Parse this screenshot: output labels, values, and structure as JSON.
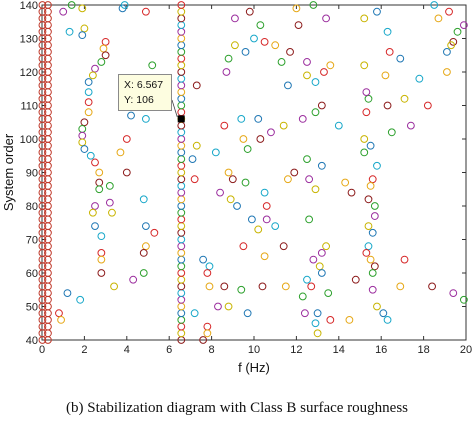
{
  "chart_data": {
    "type": "scatter",
    "xlabel": "f (Hz)",
    "ylabel": "System order",
    "xlim": [
      0,
      20
    ],
    "ylim": [
      40,
      140
    ],
    "xticks": [
      0,
      2,
      4,
      6,
      8,
      10,
      12,
      14,
      16,
      18,
      20
    ],
    "yticks": [
      40,
      50,
      60,
      70,
      80,
      90,
      100,
      110,
      120,
      130,
      140
    ],
    "grid": false,
    "marker": "open-circle",
    "stable_columns": [
      {
        "x": 0.02,
        "color": "#c0392b"
      },
      {
        "x": 0.28,
        "color": "#c0392b"
      },
      {
        "x": 6.57,
        "color": "mixed"
      }
    ],
    "column_order_range": [
      40,
      140
    ],
    "column_order_step": 2,
    "palette": [
      "#d62728",
      "#2ca02c",
      "#1f77b4",
      "#e6a817",
      "#9b2e9e",
      "#17a7c9",
      "#8c1b1b",
      "#c8b400"
    ],
    "scatter_points": [
      [
        1.4,
        140
      ],
      [
        1.0,
        138
      ],
      [
        1.9,
        139
      ],
      [
        3.8,
        139
      ],
      [
        3.9,
        140
      ],
      [
        4.9,
        138
      ],
      [
        12.0,
        139
      ],
      [
        12.1,
        134
      ],
      [
        12.8,
        140
      ],
      [
        13.4,
        136
      ],
      [
        15.2,
        136
      ],
      [
        15.8,
        138
      ],
      [
        18.5,
        140
      ],
      [
        19.2,
        138
      ],
      [
        18.7,
        136
      ],
      [
        9.8,
        138
      ],
      [
        10.3,
        134
      ],
      [
        9.1,
        136
      ],
      [
        2.0,
        133
      ],
      [
        1.9,
        131
      ],
      [
        1.3,
        132
      ],
      [
        3.0,
        129
      ],
      [
        2.9,
        127
      ],
      [
        3.0,
        125
      ],
      [
        2.8,
        123
      ],
      [
        2.5,
        121
      ],
      [
        2.4,
        119
      ],
      [
        2.2,
        117
      ],
      [
        2.2,
        114
      ],
      [
        2.2,
        111
      ],
      [
        2.2,
        108
      ],
      [
        2.0,
        105
      ],
      [
        1.9,
        103
      ],
      [
        1.9,
        101
      ],
      [
        1.9,
        99
      ],
      [
        2.0,
        97
      ],
      [
        2.3,
        95
      ],
      [
        2.5,
        93
      ],
      [
        2.7,
        90
      ],
      [
        2.7,
        87
      ],
      [
        2.7,
        85
      ],
      [
        2.5,
        80
      ],
      [
        2.4,
        78
      ],
      [
        2.5,
        74
      ],
      [
        2.8,
        71
      ],
      [
        2.8,
        66
      ],
      [
        2.8,
        64
      ],
      [
        2.8,
        60
      ],
      [
        5.2,
        122
      ],
      [
        4.2,
        117
      ],
      [
        4.3,
        113
      ],
      [
        4.2,
        107
      ],
      [
        4.9,
        106
      ],
      [
        4.0,
        100
      ],
      [
        3.7,
        96
      ],
      [
        4.0,
        90
      ],
      [
        3.2,
        86
      ],
      [
        3.2,
        81
      ],
      [
        3.3,
        78
      ],
      [
        4.9,
        74
      ],
      [
        4.8,
        82
      ],
      [
        5.3,
        72
      ],
      [
        4.9,
        68
      ],
      [
        4.8,
        66
      ],
      [
        4.8,
        60
      ],
      [
        4.3,
        58
      ],
      [
        3.4,
        56
      ],
      [
        1.2,
        54
      ],
      [
        1.8,
        52
      ],
      [
        0.8,
        48
      ],
      [
        0.9,
        46
      ],
      [
        7.3,
        116
      ],
      [
        8.8,
        124
      ],
      [
        8.7,
        120
      ],
      [
        9.1,
        128
      ],
      [
        9.6,
        126
      ],
      [
        10.0,
        130
      ],
      [
        10.5,
        129
      ],
      [
        11.0,
        128
      ],
      [
        11.7,
        126
      ],
      [
        11.3,
        123
      ],
      [
        12.5,
        123
      ],
      [
        12.5,
        119
      ],
      [
        11.6,
        116
      ],
      [
        12.9,
        117
      ],
      [
        13.3,
        120
      ],
      [
        13.6,
        122
      ],
      [
        13.2,
        110
      ],
      [
        12.9,
        108
      ],
      [
        12.3,
        106
      ],
      [
        11.4,
        104
      ],
      [
        10.2,
        106
      ],
      [
        9.4,
        106
      ],
      [
        8.6,
        104
      ],
      [
        9.5,
        100
      ],
      [
        10.3,
        100
      ],
      [
        9.7,
        97
      ],
      [
        10.8,
        102
      ],
      [
        7.3,
        98
      ],
      [
        7.1,
        94
      ],
      [
        8.2,
        96
      ],
      [
        7.2,
        88
      ],
      [
        8.8,
        90
      ],
      [
        9.0,
        88
      ],
      [
        9.6,
        87
      ],
      [
        8.4,
        84
      ],
      [
        8.9,
        82
      ],
      [
        9.2,
        80
      ],
      [
        10.5,
        84
      ],
      [
        10.6,
        80
      ],
      [
        11.6,
        88
      ],
      [
        11.9,
        90
      ],
      [
        12.5,
        94
      ],
      [
        12.6,
        88
      ],
      [
        12.9,
        85
      ],
      [
        13.2,
        92
      ],
      [
        14.0,
        104
      ],
      [
        15.3,
        108
      ],
      [
        14.3,
        87
      ],
      [
        14.6,
        84
      ],
      [
        15.2,
        96
      ],
      [
        10.6,
        76
      ],
      [
        10.2,
        73
      ],
      [
        9.9,
        76
      ],
      [
        11.0,
        74
      ],
      [
        9.5,
        68
      ],
      [
        10.5,
        65
      ],
      [
        11.4,
        68
      ],
      [
        12.6,
        76
      ],
      [
        12.8,
        64
      ],
      [
        13.1,
        62
      ],
      [
        13.2,
        60
      ],
      [
        12.5,
        58
      ],
      [
        12.7,
        56
      ],
      [
        11.5,
        56
      ],
      [
        10.4,
        56
      ],
      [
        12.3,
        53
      ],
      [
        12.4,
        48
      ],
      [
        13.0,
        42
      ],
      [
        13.0,
        48
      ],
      [
        12.9,
        45
      ],
      [
        13.6,
        46
      ],
      [
        14.5,
        46
      ],
      [
        14.8,
        58
      ],
      [
        13.5,
        54
      ],
      [
        13.2,
        66
      ],
      [
        13.4,
        68
      ],
      [
        7.6,
        64
      ],
      [
        7.9,
        62
      ],
      [
        7.8,
        60
      ],
      [
        7.9,
        56
      ],
      [
        8.6,
        56
      ],
      [
        9.4,
        55
      ],
      [
        8.3,
        50
      ],
      [
        8.8,
        50
      ],
      [
        9.7,
        48
      ],
      [
        7.2,
        48
      ],
      [
        7.8,
        44
      ],
      [
        7.8,
        42
      ],
      [
        7.6,
        40
      ],
      [
        15.4,
        112
      ],
      [
        15.3,
        114
      ],
      [
        15.2,
        100
      ],
      [
        15.5,
        98
      ],
      [
        15.8,
        92
      ],
      [
        15.6,
        88
      ],
      [
        15.5,
        86
      ],
      [
        15.4,
        82
      ],
      [
        15.7,
        80
      ],
      [
        15.7,
        77
      ],
      [
        15.4,
        74
      ],
      [
        15.6,
        72
      ],
      [
        15.4,
        68
      ],
      [
        15.3,
        66
      ],
      [
        15.5,
        64
      ],
      [
        15.7,
        62
      ],
      [
        15.6,
        60
      ],
      [
        15.6,
        55
      ],
      [
        15.8,
        50
      ],
      [
        16.1,
        48
      ],
      [
        16.3,
        46
      ],
      [
        16.4,
        126
      ],
      [
        16.2,
        119
      ],
      [
        16.3,
        110
      ],
      [
        16.5,
        102
      ],
      [
        17.4,
        104
      ],
      [
        17.1,
        112
      ],
      [
        16.9,
        124
      ],
      [
        17.8,
        118
      ],
      [
        18.2,
        110
      ],
      [
        19.1,
        120
      ],
      [
        19.4,
        129
      ],
      [
        19.6,
        132
      ],
      [
        19.9,
        134
      ],
      [
        19.3,
        128
      ],
      [
        19.1,
        126
      ],
      [
        16.3,
        132
      ],
      [
        17.1,
        64
      ],
      [
        16.9,
        56
      ],
      [
        18.4,
        56
      ],
      [
        19.9,
        52
      ],
      [
        19.4,
        54
      ],
      [
        15.2,
        122
      ]
    ],
    "datatip": {
      "x_label": "X: 6.567",
      "y_label": "Y: 106",
      "x": 6.567,
      "y": 106
    }
  },
  "caption": "(b)  Stabilization diagram with Class B surface roughness"
}
